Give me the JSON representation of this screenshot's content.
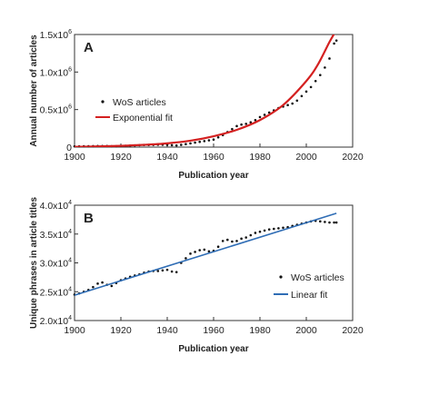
{
  "chart_data": [
    {
      "type": "scatter",
      "panel_label": "A",
      "xlabel": "Publication year",
      "ylabel": "Annual number of articles",
      "xlim": [
        1900,
        2020
      ],
      "ylim": [
        0,
        1500000
      ],
      "x_ticks": [
        1900,
        1920,
        1940,
        1960,
        1980,
        2000,
        2020
      ],
      "y_ticks": [
        {
          "value": 0,
          "label": "0"
        },
        {
          "value": 500000,
          "label": "0.5x10",
          "exp": "6"
        },
        {
          "value": 1000000,
          "label": "1.0x10",
          "exp": "6"
        },
        {
          "value": 1500000,
          "label": "1.5x10",
          "exp": "6"
        }
      ],
      "legend_position": "center-left",
      "series": [
        {
          "name": "WoS articles",
          "kind": "points",
          "color": "#111111",
          "x": [
            1900,
            1902,
            1904,
            1906,
            1908,
            1910,
            1912,
            1914,
            1916,
            1918,
            1920,
            1922,
            1924,
            1926,
            1928,
            1930,
            1932,
            1934,
            1936,
            1938,
            1940,
            1942,
            1944,
            1946,
            1948,
            1950,
            1952,
            1954,
            1956,
            1958,
            1960,
            1962,
            1964,
            1966,
            1968,
            1970,
            1972,
            1974,
            1976,
            1978,
            1980,
            1982,
            1984,
            1986,
            1988,
            1990,
            1992,
            1994,
            1996,
            1998,
            2000,
            2002,
            2004,
            2006,
            2008,
            2010,
            2012,
            2013
          ],
          "y": [
            10000,
            10000,
            12000,
            12000,
            13000,
            15000,
            15000,
            14000,
            12000,
            12000,
            15000,
            18000,
            20000,
            22000,
            25000,
            28000,
            28000,
            30000,
            32000,
            32000,
            30000,
            25000,
            22000,
            30000,
            40000,
            50000,
            60000,
            70000,
            80000,
            90000,
            100000,
            130000,
            160000,
            200000,
            240000,
            280000,
            300000,
            310000,
            330000,
            360000,
            400000,
            430000,
            460000,
            490000,
            520000,
            540000,
            560000,
            580000,
            620000,
            680000,
            740000,
            800000,
            880000,
            960000,
            1060000,
            1180000,
            1380000,
            1420000
          ]
        },
        {
          "name": "Exponential fit",
          "kind": "line",
          "color": "#d42020",
          "x": [
            1900,
            1910,
            1920,
            1930,
            1940,
            1950,
            1960,
            1970,
            1980,
            1990,
            2000,
            2005,
            2010,
            2013
          ],
          "y": [
            4000,
            9000,
            17000,
            30000,
            50000,
            85000,
            145000,
            230000,
            360000,
            560000,
            880000,
            1100000,
            1400000,
            1560000
          ]
        }
      ]
    },
    {
      "type": "scatter",
      "panel_label": "B",
      "xlabel": "Publication year",
      "ylabel": "Unique phrases in article titles",
      "xlim": [
        1900,
        2020
      ],
      "ylim": [
        20000,
        40000
      ],
      "x_ticks": [
        1900,
        1920,
        1940,
        1960,
        1980,
        2000,
        2020
      ],
      "y_ticks": [
        {
          "value": 20000,
          "label": "2.0x10",
          "exp": "4"
        },
        {
          "value": 25000,
          "label": "2.5x10",
          "exp": "4"
        },
        {
          "value": 30000,
          "label": "3.0x10",
          "exp": "4"
        },
        {
          "value": 35000,
          "label": "3.5x10",
          "exp": "4"
        },
        {
          "value": 40000,
          "label": "4.0x10",
          "exp": "4"
        }
      ],
      "legend_position": "bottom-right",
      "series": [
        {
          "name": "WoS articles",
          "kind": "points",
          "color": "#111111",
          "x": [
            1900,
            1902,
            1904,
            1906,
            1908,
            1910,
            1912,
            1914,
            1916,
            1918,
            1920,
            1922,
            1924,
            1926,
            1928,
            1930,
            1932,
            1934,
            1936,
            1938,
            1940,
            1942,
            1944,
            1946,
            1948,
            1950,
            1952,
            1954,
            1956,
            1958,
            1960,
            1962,
            1964,
            1966,
            1968,
            1970,
            1972,
            1974,
            1976,
            1978,
            1980,
            1982,
            1984,
            1986,
            1988,
            1990,
            1992,
            1994,
            1996,
            1998,
            2000,
            2002,
            2004,
            2006,
            2008,
            2010,
            2012,
            2013
          ],
          "y": [
            24500,
            24700,
            25000,
            25300,
            25800,
            26400,
            26600,
            26200,
            26000,
            26500,
            27000,
            27300,
            27600,
            27800,
            28000,
            28300,
            28500,
            28600,
            28600,
            28700,
            28800,
            28500,
            28400,
            30000,
            30800,
            31600,
            31900,
            32200,
            32300,
            32000,
            32100,
            32800,
            33800,
            34000,
            33700,
            33800,
            34200,
            34400,
            34800,
            35200,
            35400,
            35600,
            35800,
            35900,
            36000,
            36100,
            36200,
            36400,
            36600,
            36800,
            37000,
            37200,
            37300,
            37200,
            37100,
            37000,
            37000,
            37000
          ]
        },
        {
          "name": "Linear fit",
          "kind": "line",
          "color": "#2f6db5",
          "x": [
            1900,
            2013
          ],
          "y": [
            24400,
            38600
          ]
        }
      ]
    }
  ]
}
